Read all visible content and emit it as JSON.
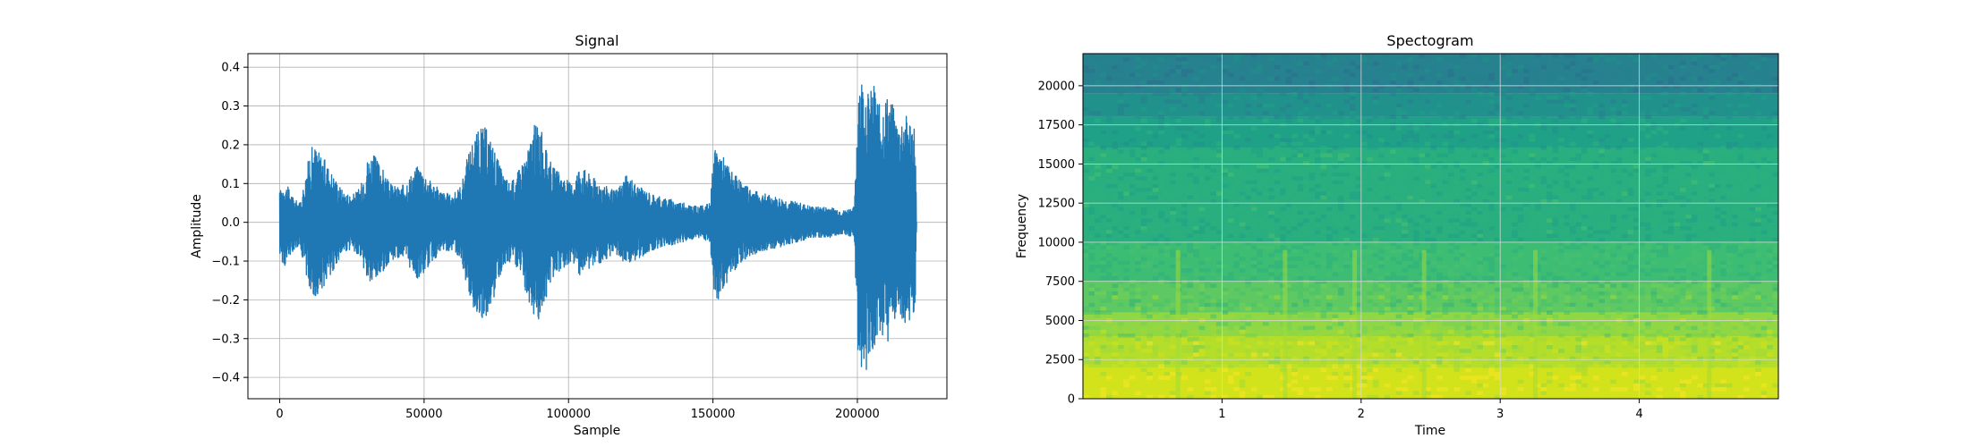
{
  "chart_data": [
    {
      "type": "line",
      "title": "Signal",
      "xlabel": "Sample",
      "ylabel": "Amplitude",
      "xlim": [
        -11000,
        231000
      ],
      "ylim": [
        -0.455,
        0.435
      ],
      "x_ticks": [
        0,
        50000,
        100000,
        150000,
        200000
      ],
      "x_tick_labels": [
        "0",
        "50000",
        "100000",
        "150000",
        "200000"
      ],
      "y_ticks": [
        -0.4,
        -0.3,
        -0.2,
        -0.1,
        0.0,
        0.1,
        0.2,
        0.3,
        0.4
      ],
      "y_tick_labels": [
        "−0.4",
        "−0.3",
        "−0.2",
        "−0.1",
        "0.0",
        "0.1",
        "0.2",
        "0.3",
        "0.4"
      ],
      "grid": true,
      "series": [
        {
          "color": "#1f77b4",
          "envelope": {
            "x": [
              0,
              1500,
              3000,
              5000,
              7000,
              9000,
              10500,
              12000,
              15000,
              18000,
              22000,
              25000,
              28000,
              30000,
              32000,
              35000,
              38000,
              42000,
              45000,
              48000,
              50000,
              52000,
              56000,
              60000,
              63000,
              65000,
              67000,
              69000,
              71000,
              74000,
              77000,
              80000,
              83000,
              86000,
              88000,
              90000,
              92000,
              95000,
              98000,
              101000,
              104000,
              108000,
              112000,
              116000,
              120000,
              125000,
              130000,
              135000,
              140000,
              145000,
              149000,
              150000,
              151000,
              153000,
              156000,
              160000,
              165000,
              170000,
              175000,
              180000,
              185000,
              190000,
              195000,
              199000,
              200000,
              200500,
              202000,
              204000,
              206000,
              208000,
              210000,
              212000,
              214000,
              216000,
              218000,
              220000,
              220500
            ],
            "upper": [
              0.08,
              0.1,
              0.09,
              0.06,
              0.05,
              0.12,
              0.19,
              0.2,
              0.17,
              0.13,
              0.08,
              0.07,
              0.09,
              0.16,
              0.18,
              0.15,
              0.1,
              0.09,
              0.12,
              0.15,
              0.13,
              0.11,
              0.08,
              0.07,
              0.1,
              0.17,
              0.22,
              0.24,
              0.25,
              0.2,
              0.13,
              0.1,
              0.14,
              0.19,
              0.25,
              0.26,
              0.19,
              0.14,
              0.12,
              0.1,
              0.15,
              0.12,
              0.1,
              0.08,
              0.12,
              0.09,
              0.07,
              0.06,
              0.05,
              0.04,
              0.05,
              0.15,
              0.2,
              0.18,
              0.14,
              0.1,
              0.08,
              0.07,
              0.06,
              0.05,
              0.04,
              0.04,
              0.03,
              0.04,
              0.28,
              0.39,
              0.37,
              0.33,
              0.36,
              0.29,
              0.33,
              0.31,
              0.25,
              0.28,
              0.27,
              0.25,
              0.0
            ],
            "lower": [
              -0.08,
              -0.12,
              -0.1,
              -0.07,
              -0.06,
              -0.13,
              -0.18,
              -0.2,
              -0.17,
              -0.13,
              -0.08,
              -0.07,
              -0.09,
              -0.15,
              -0.17,
              -0.14,
              -0.1,
              -0.09,
              -0.12,
              -0.15,
              -0.13,
              -0.11,
              -0.08,
              -0.07,
              -0.1,
              -0.18,
              -0.22,
              -0.24,
              -0.25,
              -0.2,
              -0.13,
              -0.1,
              -0.13,
              -0.2,
              -0.24,
              -0.26,
              -0.2,
              -0.14,
              -0.12,
              -0.1,
              -0.14,
              -0.12,
              -0.1,
              -0.08,
              -0.11,
              -0.09,
              -0.07,
              -0.06,
              -0.05,
              -0.04,
              -0.05,
              -0.15,
              -0.21,
              -0.19,
              -0.14,
              -0.1,
              -0.08,
              -0.07,
              -0.06,
              -0.05,
              -0.04,
              -0.04,
              -0.03,
              -0.04,
              -0.32,
              -0.35,
              -0.41,
              -0.36,
              -0.34,
              -0.28,
              -0.31,
              -0.3,
              -0.24,
              -0.27,
              -0.26,
              -0.24,
              0.0
            ]
          }
        }
      ]
    },
    {
      "type": "heatmap",
      "title": "Spectogram",
      "xlabel": "Time",
      "ylabel": "Frequency",
      "xlim": [
        0.0,
        5.0
      ],
      "ylim": [
        0,
        22050
      ],
      "x_ticks": [
        1,
        2,
        3,
        4
      ],
      "x_tick_labels": [
        "1",
        "2",
        "3",
        "4"
      ],
      "y_ticks": [
        0,
        2500,
        5000,
        7500,
        10000,
        12500,
        15000,
        17500,
        20000
      ],
      "y_tick_labels": [
        "0",
        "2500",
        "5000",
        "7500",
        "10000",
        "12500",
        "15000",
        "17500",
        "20000"
      ],
      "grid": true,
      "colormap": "viridis",
      "frequency_bands": [
        {
          "from": 0,
          "to": 2000,
          "color": "#d2e21b"
        },
        {
          "from": 2000,
          "to": 4000,
          "color": "#b5de2b"
        },
        {
          "from": 4000,
          "to": 5500,
          "color": "#8fd744"
        },
        {
          "from": 5500,
          "to": 7500,
          "color": "#5ec962"
        },
        {
          "from": 7500,
          "to": 10000,
          "color": "#3dbc74"
        },
        {
          "from": 10000,
          "to": 16000,
          "color": "#29af7f"
        },
        {
          "from": 16000,
          "to": 18000,
          "color": "#1fa187"
        },
        {
          "from": 18000,
          "to": 19500,
          "color": "#21918c"
        },
        {
          "from": 19500,
          "to": 22050,
          "color": "#26828e"
        }
      ],
      "onsets": [
        0.68,
        1.45,
        1.95,
        2.45,
        3.25,
        4.5
      ]
    }
  ]
}
